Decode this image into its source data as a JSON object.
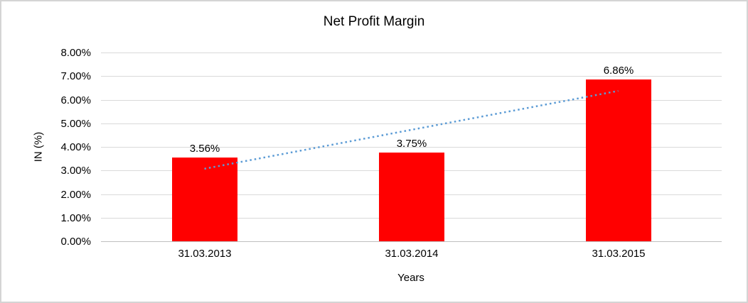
{
  "chart_data": {
    "type": "bar",
    "title": "Net Profit Margin",
    "xlabel": "Years",
    "ylabel": "IN (%)",
    "categories": [
      "31.03.2013",
      "31.03.2014",
      "31.03.2015"
    ],
    "values": [
      3.56,
      3.75,
      6.86
    ],
    "value_labels": [
      "3.56%",
      "3.75%",
      "6.86%"
    ],
    "ylim": [
      0,
      8
    ],
    "ytick_step": 1,
    "ytick_labels": [
      "0.00%",
      "1.00%",
      "2.00%",
      "3.00%",
      "4.00%",
      "5.00%",
      "6.00%",
      "7.00%",
      "8.00%"
    ],
    "grid": true,
    "legend": "none",
    "bar_color": "#FF0000",
    "gridline_color": "#D9D9D9",
    "axis_line_color": "#BFBFBF",
    "text_color": "#000000",
    "trendline": {
      "type": "linear",
      "style": "dotted",
      "color": "#5B9BD5"
    }
  }
}
